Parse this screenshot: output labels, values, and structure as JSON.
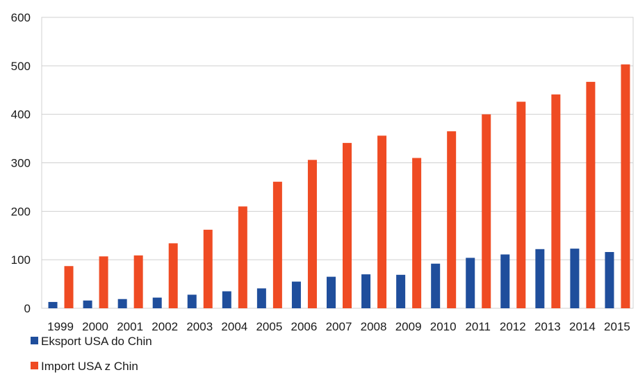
{
  "chart_data": {
    "type": "bar",
    "categories": [
      "1999",
      "2000",
      "2001",
      "2002",
      "2003",
      "2004",
      "2005",
      "2006",
      "2007",
      "2008",
      "2009",
      "2010",
      "2011",
      "2012",
      "2013",
      "2014",
      "2015"
    ],
    "series": [
      {
        "name": "Eksport USA do Chin",
        "color": "#1f4e9c",
        "values": [
          13,
          16,
          19,
          22,
          28,
          35,
          41,
          55,
          65,
          70,
          69,
          92,
          104,
          111,
          122,
          123,
          116
        ]
      },
      {
        "name": "Import USA z Chin",
        "color": "#ef4b23",
        "values": [
          87,
          107,
          109,
          134,
          162,
          210,
          261,
          306,
          341,
          356,
          310,
          365,
          400,
          426,
          441,
          467,
          503
        ]
      }
    ],
    "yticks": [
      "0",
      "100",
      "200",
      "300",
      "400",
      "500",
      "600"
    ],
    "ylim": [
      0,
      600
    ],
    "grid": true,
    "legend": "bottom-left",
    "title": "",
    "xlabel": "",
    "ylabel": ""
  }
}
